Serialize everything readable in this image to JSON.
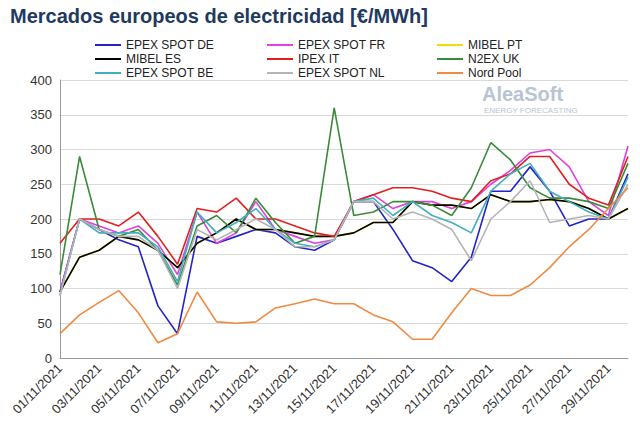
{
  "chart_data": {
    "type": "line",
    "title": "Mercados europeos de electricidad [€/MWh]",
    "annotations": [
      "AleaSoft",
      "ENERGY FORECASTING"
    ],
    "categories": [
      "01/11/2021",
      null,
      "03/11/2021",
      null,
      "05/11/2021",
      null,
      "07/11/2021",
      null,
      "09/11/2021",
      null,
      "11/11/2021",
      null,
      "13/11/2021",
      null,
      "15/11/2021",
      null,
      "17/11/2021",
      null,
      "19/11/2021",
      null,
      "21/11/2021",
      null,
      "23/11/2021",
      null,
      "25/11/2021",
      null,
      "27/11/2021",
      null,
      "29/11/2021",
      null
    ],
    "series": [
      {
        "name": "EPEX SPOT DE",
        "color": "#2323c8",
        "values": [
          95,
          200,
          185,
          170,
          160,
          75,
          35,
          175,
          165,
          175,
          185,
          180,
          160,
          155,
          170,
          225,
          225,
          185,
          140,
          130,
          110,
          145,
          240,
          240,
          275,
          240,
          190,
          200,
          200,
          265
        ]
      },
      {
        "name": "EPEX SPOT FR",
        "color": "#e040e0",
        "values": [
          95,
          200,
          190,
          180,
          190,
          165,
          120,
          210,
          165,
          180,
          225,
          185,
          175,
          165,
          170,
          225,
          235,
          215,
          225,
          225,
          215,
          225,
          250,
          270,
          295,
          300,
          275,
          225,
          205,
          305
        ]
      },
      {
        "name": "MIBEL PT",
        "color": "#f0e000",
        "values": [
          95,
          145,
          155,
          175,
          170,
          155,
          130,
          165,
          180,
          200,
          185,
          185,
          180,
          175,
          175,
          180,
          195,
          195,
          225,
          220,
          220,
          215,
          235,
          225,
          225,
          228,
          225,
          215,
          200,
          215
        ]
      },
      {
        "name": "MIBEL ES",
        "color": "#000000",
        "values": [
          95,
          145,
          155,
          175,
          170,
          155,
          130,
          165,
          180,
          200,
          185,
          185,
          180,
          175,
          175,
          180,
          195,
          195,
          225,
          220,
          220,
          215,
          235,
          225,
          225,
          228,
          225,
          215,
          200,
          215
        ]
      },
      {
        "name": "IPEX IT",
        "color": "#e02020",
        "values": [
          165,
          200,
          200,
          190,
          210,
          175,
          135,
          215,
          210,
          230,
          200,
          200,
          190,
          180,
          175,
          225,
          235,
          245,
          245,
          240,
          230,
          225,
          255,
          265,
          290,
          290,
          250,
          230,
          220,
          290
        ]
      },
      {
        "name": "N2EX UK",
        "color": "#3a8a3a",
        "values": [
          120,
          290,
          185,
          175,
          185,
          155,
          105,
          190,
          205,
          180,
          230,
          195,
          165,
          175,
          360,
          205,
          210,
          225,
          225,
          220,
          205,
          245,
          310,
          285,
          245,
          230,
          230,
          225,
          215,
          280
        ]
      },
      {
        "name": "EPEX SPOT BE",
        "color": "#40b0c0",
        "values": [
          90,
          200,
          180,
          180,
          180,
          160,
          110,
          210,
          180,
          195,
          215,
          185,
          165,
          160,
          170,
          225,
          230,
          205,
          225,
          205,
          195,
          180,
          240,
          265,
          280,
          240,
          225,
          210,
          200,
          260
        ]
      },
      {
        "name": "EPEX SPOT NL",
        "color": "#b4b4b4",
        "values": [
          90,
          200,
          185,
          175,
          175,
          155,
          100,
          185,
          170,
          185,
          200,
          185,
          160,
          160,
          170,
          225,
          225,
          200,
          210,
          200,
          185,
          140,
          200,
          225,
          255,
          195,
          200,
          205,
          200,
          250
        ]
      },
      {
        "name": "Nord Pool",
        "color": "#f08a40",
        "values": [
          35,
          62,
          80,
          97,
          65,
          22,
          35,
          95,
          52,
          50,
          52,
          72,
          78,
          85,
          78,
          78,
          62,
          52,
          27,
          27,
          65,
          100,
          90,
          90,
          105,
          130,
          160,
          185,
          215,
          245
        ]
      }
    ],
    "ylim": [
      0,
      400
    ],
    "yticks": [
      0,
      50,
      100,
      150,
      200,
      250,
      300,
      350,
      400
    ],
    "grid": true,
    "legend": "top"
  }
}
